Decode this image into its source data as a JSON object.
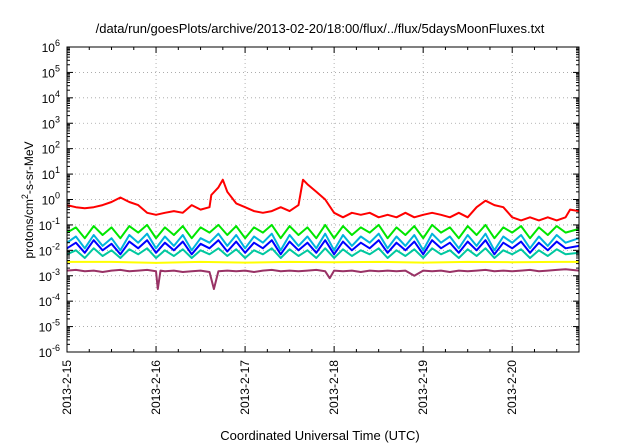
{
  "chart_data": {
    "type": "line",
    "title": "/data/run/goesPlots/archive/2013-02-20/18:00/flux/../flux/5daysMoonFluxes.txt",
    "xlabel": "Coordinated Universal Time (UTC)",
    "ylabel_parts": [
      "protons/cm",
      "2",
      "-s-sr-MeV"
    ],
    "yscale": "log",
    "ylim_exp": [
      -6,
      6
    ],
    "yticks": [
      {
        "base": "10",
        "exp": "-6",
        "e": -6
      },
      {
        "base": "10",
        "exp": "-5",
        "e": -5
      },
      {
        "base": "10",
        "exp": "-4",
        "e": -4
      },
      {
        "base": "10",
        "exp": "-3",
        "e": -3
      },
      {
        "base": "10",
        "exp": "-2",
        "e": -2
      },
      {
        "base": "10",
        "exp": "-1",
        "e": -1
      },
      {
        "base": "10",
        "exp": "0",
        "e": 0
      },
      {
        "base": "10",
        "exp": "1",
        "e": 1
      },
      {
        "base": "10",
        "exp": "2",
        "e": 2
      },
      {
        "base": "10",
        "exp": "3",
        "e": 3
      },
      {
        "base": "10",
        "exp": "4",
        "e": 4
      },
      {
        "base": "10",
        "exp": "5",
        "e": 5
      },
      {
        "base": "10",
        "exp": "6",
        "e": 6
      }
    ],
    "xlim_days": [
      0,
      5.75
    ],
    "xticks": [
      {
        "label": "2013-2-15",
        "day": 0
      },
      {
        "label": "2013-2-16",
        "day": 1
      },
      {
        "label": "2013-2-17",
        "day": 2
      },
      {
        "label": "2013-2-18",
        "day": 3
      },
      {
        "label": "2013-2-19",
        "day": 4
      },
      {
        "label": "2013-2-20",
        "day": 5
      }
    ],
    "grid": true,
    "series": [
      {
        "color": "#ff0000",
        "x": [
          0,
          0.1,
          0.2,
          0.3,
          0.4,
          0.5,
          0.6,
          0.7,
          0.8,
          0.9,
          1.0,
          1.1,
          1.2,
          1.3,
          1.4,
          1.5,
          1.6,
          1.62,
          1.7,
          1.75,
          1.8,
          1.9,
          2.0,
          2.1,
          2.2,
          2.3,
          2.4,
          2.5,
          2.6,
          2.65,
          2.7,
          2.8,
          2.9,
          3.0,
          3.1,
          3.2,
          3.3,
          3.4,
          3.5,
          3.6,
          3.7,
          3.8,
          3.9,
          4.0,
          4.1,
          4.2,
          4.3,
          4.4,
          4.5,
          4.6,
          4.7,
          4.8,
          4.9,
          5.0,
          5.1,
          5.2,
          5.3,
          5.4,
          5.5,
          5.6,
          5.65,
          5.75
        ],
        "y": [
          0.6,
          0.5,
          0.45,
          0.5,
          0.6,
          0.8,
          1.2,
          0.8,
          0.6,
          0.3,
          0.25,
          0.3,
          0.35,
          0.3,
          0.6,
          0.4,
          0.5,
          1.5,
          3,
          6,
          2,
          0.7,
          0.5,
          0.35,
          0.3,
          0.35,
          0.5,
          0.35,
          0.6,
          6,
          4,
          2,
          1,
          0.3,
          0.2,
          0.3,
          0.25,
          0.3,
          0.2,
          0.25,
          0.2,
          0.3,
          0.2,
          0.25,
          0.3,
          0.25,
          0.2,
          0.3,
          0.2,
          0.5,
          0.9,
          0.6,
          0.5,
          0.2,
          0.15,
          0.2,
          0.15,
          0.2,
          0.15,
          0.2,
          0.4,
          0.35
        ]
      },
      {
        "color": "#00e600",
        "x": [
          0,
          0.1,
          0.2,
          0.3,
          0.4,
          0.5,
          0.6,
          0.7,
          0.8,
          0.9,
          1.0,
          1.1,
          1.2,
          1.3,
          1.4,
          1.5,
          1.6,
          1.7,
          1.8,
          1.9,
          2.0,
          2.1,
          2.2,
          2.3,
          2.4,
          2.5,
          2.6,
          2.7,
          2.8,
          2.9,
          3.0,
          3.1,
          3.2,
          3.3,
          3.4,
          3.5,
          3.6,
          3.7,
          3.8,
          3.9,
          4.0,
          4.1,
          4.2,
          4.3,
          4.4,
          4.5,
          4.6,
          4.7,
          4.8,
          4.9,
          5.0,
          5.1,
          5.2,
          5.3,
          5.4,
          5.5,
          5.6,
          5.75
        ],
        "y": [
          0.05,
          0.08,
          0.03,
          0.09,
          0.04,
          0.08,
          0.03,
          0.09,
          0.05,
          0.1,
          0.03,
          0.08,
          0.04,
          0.09,
          0.03,
          0.08,
          0.05,
          0.1,
          0.04,
          0.09,
          0.03,
          0.08,
          0.05,
          0.1,
          0.03,
          0.09,
          0.04,
          0.08,
          0.03,
          0.1,
          0.03,
          0.09,
          0.04,
          0.08,
          0.05,
          0.1,
          0.03,
          0.08,
          0.04,
          0.09,
          0.03,
          0.1,
          0.05,
          0.08,
          0.03,
          0.09,
          0.04,
          0.1,
          0.03,
          0.08,
          0.05,
          0.09,
          0.03,
          0.08,
          0.04,
          0.09,
          0.05,
          0.07
        ]
      },
      {
        "color": "#00b4dc",
        "x": [
          0,
          0.1,
          0.2,
          0.3,
          0.4,
          0.5,
          0.6,
          0.7,
          0.8,
          0.9,
          1.0,
          1.1,
          1.2,
          1.3,
          1.4,
          1.5,
          1.6,
          1.7,
          1.8,
          1.9,
          2.0,
          2.1,
          2.2,
          2.3,
          2.4,
          2.5,
          2.6,
          2.7,
          2.8,
          2.9,
          3.0,
          3.1,
          3.2,
          3.3,
          3.4,
          3.5,
          3.6,
          3.7,
          3.8,
          3.9,
          4.0,
          4.1,
          4.2,
          4.3,
          4.4,
          4.5,
          4.6,
          4.7,
          4.8,
          4.9,
          5.0,
          5.1,
          5.2,
          5.3,
          5.4,
          5.5,
          5.6,
          5.75
        ],
        "y": [
          0.02,
          0.035,
          0.012,
          0.04,
          0.015,
          0.03,
          0.01,
          0.04,
          0.02,
          0.045,
          0.012,
          0.035,
          0.015,
          0.04,
          0.01,
          0.03,
          0.02,
          0.045,
          0.015,
          0.04,
          0.012,
          0.035,
          0.02,
          0.045,
          0.01,
          0.04,
          0.015,
          0.035,
          0.012,
          0.045,
          0.01,
          0.04,
          0.015,
          0.035,
          0.02,
          0.045,
          0.012,
          0.035,
          0.015,
          0.04,
          0.01,
          0.045,
          0.02,
          0.035,
          0.012,
          0.04,
          0.015,
          0.045,
          0.01,
          0.035,
          0.02,
          0.04,
          0.012,
          0.035,
          0.015,
          0.04,
          0.02,
          0.03
        ]
      },
      {
        "color": "#0000ff",
        "x": [
          0,
          0.1,
          0.2,
          0.3,
          0.4,
          0.5,
          0.6,
          0.7,
          0.8,
          0.9,
          1.0,
          1.1,
          1.2,
          1.3,
          1.4,
          1.5,
          1.6,
          1.7,
          1.8,
          1.9,
          2.0,
          2.1,
          2.2,
          2.3,
          2.4,
          2.5,
          2.6,
          2.7,
          2.8,
          2.9,
          3.0,
          3.1,
          3.2,
          3.3,
          3.4,
          3.5,
          3.6,
          3.7,
          3.8,
          3.9,
          4.0,
          4.1,
          4.2,
          4.3,
          4.4,
          4.5,
          4.6,
          4.7,
          4.8,
          4.9,
          5.0,
          5.1,
          5.2,
          5.3,
          5.4,
          5.5,
          5.6,
          5.75
        ],
        "y": [
          0.012,
          0.02,
          0.008,
          0.025,
          0.01,
          0.018,
          0.007,
          0.022,
          0.012,
          0.025,
          0.008,
          0.02,
          0.01,
          0.022,
          0.007,
          0.018,
          0.012,
          0.025,
          0.009,
          0.022,
          0.008,
          0.02,
          0.012,
          0.025,
          0.007,
          0.022,
          0.01,
          0.02,
          0.008,
          0.025,
          0.007,
          0.022,
          0.01,
          0.02,
          0.012,
          0.025,
          0.008,
          0.02,
          0.01,
          0.022,
          0.007,
          0.025,
          0.012,
          0.02,
          0.008,
          0.022,
          0.01,
          0.025,
          0.007,
          0.02,
          0.012,
          0.022,
          0.008,
          0.02,
          0.01,
          0.022,
          0.012,
          0.015
        ]
      },
      {
        "color": "#00c8a0",
        "x": [
          0,
          0.1,
          0.2,
          0.3,
          0.4,
          0.5,
          0.6,
          0.7,
          0.8,
          0.9,
          1.0,
          1.1,
          1.2,
          1.3,
          1.4,
          1.5,
          1.6,
          1.7,
          1.8,
          1.9,
          2.0,
          2.1,
          2.2,
          2.3,
          2.4,
          2.5,
          2.6,
          2.7,
          2.8,
          2.9,
          3.0,
          3.1,
          3.2,
          3.3,
          3.4,
          3.5,
          3.6,
          3.7,
          3.8,
          3.9,
          4.0,
          4.1,
          4.2,
          4.3,
          4.4,
          4.5,
          4.6,
          4.7,
          4.8,
          4.9,
          5.0,
          5.1,
          5.2,
          5.3,
          5.4,
          5.5,
          5.6,
          5.75
        ],
        "y": [
          0.007,
          0.01,
          0.005,
          0.012,
          0.006,
          0.01,
          0.005,
          0.011,
          0.007,
          0.012,
          0.005,
          0.01,
          0.006,
          0.011,
          0.005,
          0.01,
          0.007,
          0.012,
          0.006,
          0.011,
          0.005,
          0.01,
          0.007,
          0.012,
          0.005,
          0.011,
          0.006,
          0.01,
          0.005,
          0.012,
          0.005,
          0.011,
          0.006,
          0.01,
          0.007,
          0.012,
          0.005,
          0.01,
          0.006,
          0.011,
          0.005,
          0.012,
          0.007,
          0.01,
          0.005,
          0.011,
          0.006,
          0.012,
          0.005,
          0.01,
          0.007,
          0.011,
          0.005,
          0.01,
          0.006,
          0.011,
          0.007,
          0.008
        ]
      },
      {
        "color": "#ffff00",
        "x": [
          0,
          0.5,
          1.0,
          1.5,
          2.0,
          2.5,
          3.0,
          3.5,
          4.0,
          4.5,
          5.0,
          5.5,
          5.75
        ],
        "y": [
          0.0035,
          0.0035,
          0.0032,
          0.0035,
          0.0033,
          0.0035,
          0.0034,
          0.0035,
          0.0033,
          0.0035,
          0.0034,
          0.0035,
          0.0035
        ]
      },
      {
        "color": "#993366",
        "x": [
          0,
          0.1,
          0.2,
          0.3,
          0.4,
          0.5,
          0.6,
          0.7,
          0.8,
          0.9,
          1.0,
          1.02,
          1.05,
          1.1,
          1.2,
          1.3,
          1.4,
          1.5,
          1.6,
          1.65,
          1.7,
          1.8,
          1.9,
          2.0,
          2.1,
          2.2,
          2.3,
          2.4,
          2.5,
          2.6,
          2.7,
          2.8,
          2.9,
          2.95,
          3.0,
          3.1,
          3.2,
          3.3,
          3.4,
          3.5,
          3.6,
          3.7,
          3.8,
          3.9,
          4.0,
          4.1,
          4.2,
          4.3,
          4.4,
          4.5,
          4.6,
          4.7,
          4.8,
          4.9,
          5.0,
          5.1,
          5.2,
          5.3,
          5.4,
          5.5,
          5.6,
          5.75
        ],
        "y": [
          0.0016,
          0.0017,
          0.0015,
          0.0016,
          0.0014,
          0.0016,
          0.0017,
          0.0015,
          0.0016,
          0.0017,
          0.0015,
          0.0003,
          0.0016,
          0.0015,
          0.0016,
          0.0014,
          0.0015,
          0.0016,
          0.0014,
          0.0003,
          0.0015,
          0.0016,
          0.0015,
          0.0016,
          0.0014,
          0.0016,
          0.0017,
          0.0015,
          0.0016,
          0.0015,
          0.0016,
          0.0017,
          0.0015,
          0.0008,
          0.0016,
          0.0015,
          0.0016,
          0.0014,
          0.0016,
          0.0015,
          0.0016,
          0.0015,
          0.0016,
          0.001,
          0.0016,
          0.0015,
          0.0016,
          0.0014,
          0.0016,
          0.0015,
          0.0016,
          0.0017,
          0.0015,
          0.0016,
          0.0015,
          0.0016,
          0.0017,
          0.0015,
          0.0016,
          0.0017,
          0.0018,
          0.0016
        ]
      }
    ]
  }
}
